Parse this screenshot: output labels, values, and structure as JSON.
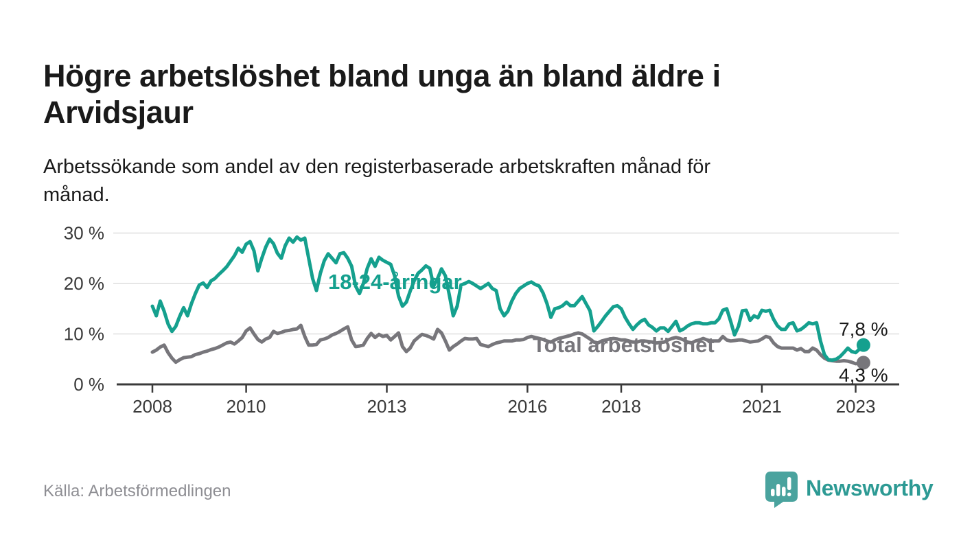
{
  "header": {
    "title": "Högre arbetslöshet bland unga än bland äldre i\nArvidsjaur",
    "subtitle": "Arbetssökande som andel av den registerbaserade arbetskraften månad för\nmånad."
  },
  "chart_data": {
    "type": "line",
    "unit": "percent of registered labour force",
    "frequency": "monthly",
    "start": "2008-01",
    "end": "2023-03",
    "ylim": [
      0,
      30
    ],
    "grid": "horizontal",
    "legend_position": "inline-labels",
    "y_ticks": [
      {
        "value": 0,
        "label": "0 %"
      },
      {
        "value": 10,
        "label": "10 %"
      },
      {
        "value": 20,
        "label": "20 %"
      },
      {
        "value": 30,
        "label": "30 %"
      }
    ],
    "x_ticks": [
      {
        "year": 2008,
        "label": "2008"
      },
      {
        "year": 2010,
        "label": "2010"
      },
      {
        "year": 2013,
        "label": "2013"
      },
      {
        "year": 2016,
        "label": "2016"
      },
      {
        "year": 2018,
        "label": "2018"
      },
      {
        "year": 2021,
        "label": "2021"
      },
      {
        "year": 2023,
        "label": "2023"
      }
    ],
    "series": [
      {
        "id": "total",
        "label": "Total arbetslöshet",
        "color": "#77767b",
        "end_value_label": "4,3 %",
        "end_value": 4.3,
        "values": [
          6.4,
          6.8,
          7.4,
          7.8,
          6.3,
          5.2,
          4.4,
          4.9,
          5.3,
          5.4,
          5.5,
          5.9,
          6.1,
          6.4,
          6.6,
          6.9,
          7.1,
          7.4,
          7.8,
          8.2,
          8.4,
          8.0,
          8.6,
          9.3,
          10.6,
          11.2,
          10.0,
          8.9,
          8.4,
          9.0,
          9.3,
          10.5,
          10.1,
          10.3,
          10.6,
          10.7,
          10.9,
          11.0,
          11.7,
          9.5,
          7.8,
          7.8,
          7.9,
          8.8,
          9.0,
          9.3,
          9.8,
          10.1,
          10.5,
          11.0,
          11.4,
          8.8,
          7.5,
          7.6,
          7.8,
          9.1,
          10.1,
          9.3,
          9.9,
          9.5,
          9.7,
          8.8,
          9.5,
          10.2,
          7.5,
          6.5,
          7.2,
          8.6,
          9.3,
          9.9,
          9.7,
          9.4,
          9.0,
          10.9,
          10.2,
          8.6,
          6.8,
          7.5,
          8.0,
          8.6,
          9.1,
          9.0,
          9.0,
          9.1,
          7.9,
          7.7,
          7.5,
          7.9,
          8.2,
          8.4,
          8.6,
          8.6,
          8.6,
          8.8,
          8.8,
          8.9,
          9.3,
          9.5,
          9.3,
          9.1,
          8.9,
          8.6,
          8.4,
          8.8,
          9.1,
          9.3,
          9.5,
          9.7,
          10.0,
          10.2,
          10.0,
          9.5,
          9.0,
          8.4,
          8.2,
          8.6,
          8.8,
          9.0,
          9.1,
          9.0,
          8.8,
          8.8,
          8.6,
          8.4,
          8.4,
          8.6,
          8.6,
          8.5,
          8.4,
          8.2,
          8.3,
          8.4,
          8.8,
          9.1,
          9.3,
          9.1,
          8.8,
          8.4,
          8.2,
          8.6,
          8.8,
          9.1,
          8.8,
          8.6,
          8.6,
          8.6,
          9.5,
          8.8,
          8.6,
          8.7,
          8.8,
          8.8,
          8.6,
          8.4,
          8.5,
          8.6,
          9.0,
          9.5,
          9.3,
          8.2,
          7.5,
          7.2,
          7.2,
          7.2,
          7.2,
          6.8,
          7.1,
          6.5,
          6.5,
          7.2,
          6.8,
          5.9,
          5.2,
          4.8,
          4.7,
          4.6,
          4.6,
          4.7,
          4.6,
          4.4,
          4.1,
          4.2,
          4.3
        ]
      },
      {
        "id": "youth",
        "label": "18-24-åringar",
        "color": "#15a08e",
        "end_value_label": "7,8 %",
        "end_value": 7.8,
        "values": [
          15.5,
          13.6,
          16.5,
          14.5,
          12.0,
          10.5,
          11.5,
          13.5,
          15.2,
          13.6,
          16.0,
          18.0,
          19.7,
          20.1,
          19.2,
          20.5,
          21.0,
          21.8,
          22.5,
          23.3,
          24.4,
          25.5,
          27.0,
          26.2,
          27.8,
          28.3,
          26.5,
          22.5,
          25.0,
          27.2,
          28.8,
          27.9,
          26.0,
          25.0,
          27.5,
          29.0,
          28.2,
          29.2,
          28.6,
          29.0,
          25.0,
          21.0,
          18.6,
          22.0,
          24.5,
          25.9,
          25.0,
          24.1,
          25.9,
          26.1,
          25.0,
          23.4,
          19.5,
          18.0,
          20.0,
          23.0,
          24.9,
          23.4,
          25.2,
          24.6,
          24.2,
          23.8,
          21.5,
          17.5,
          15.5,
          16.3,
          18.5,
          20.5,
          22.0,
          22.7,
          23.5,
          23.0,
          19.5,
          21.0,
          22.9,
          21.5,
          17.7,
          13.6,
          15.5,
          19.7,
          20.0,
          20.4,
          20.0,
          19.5,
          19.0,
          19.5,
          20.0,
          19.0,
          18.6,
          15.0,
          13.6,
          14.5,
          16.5,
          18.0,
          19.0,
          19.5,
          20.0,
          20.3,
          19.8,
          19.5,
          18.1,
          16.0,
          13.3,
          15.0,
          15.2,
          15.6,
          16.3,
          15.6,
          15.6,
          16.5,
          17.4,
          16.0,
          14.6,
          10.6,
          11.5,
          12.5,
          13.6,
          14.5,
          15.4,
          15.6,
          15.0,
          13.3,
          12.0,
          10.9,
          11.8,
          12.5,
          12.9,
          11.8,
          11.3,
          10.6,
          11.2,
          11.2,
          10.5,
          11.5,
          12.5,
          10.6,
          11.0,
          11.6,
          12.0,
          12.2,
          12.2,
          12.0,
          12.0,
          12.2,
          12.2,
          13.0,
          14.7,
          15.0,
          12.5,
          9.8,
          11.5,
          14.6,
          14.7,
          12.7,
          13.6,
          13.2,
          14.7,
          14.5,
          14.7,
          12.9,
          11.6,
          10.9,
          10.9,
          12.0,
          12.2,
          10.6,
          10.9,
          11.5,
          12.2,
          12.0,
          12.2,
          8.6,
          5.9,
          4.9,
          4.8,
          5.0,
          5.5,
          6.3,
          7.2,
          6.5,
          6.3,
          7.0,
          7.8
        ]
      }
    ]
  },
  "footer": {
    "source": "Källa: Arbetsförmedlingen",
    "logo": {
      "text": "Newsworthy",
      "icon": "bar-chart-speech-bubble-icon",
      "icon_color": "#4aa39e",
      "text_color": "#2d9a94"
    }
  },
  "colors": {
    "background": "#ffffff",
    "title_text": "#1a1a1a",
    "axis_text": "#3a3a3a",
    "grid_line": "#e0e0e0",
    "axis_line": "#3a3a3a",
    "source_text": "#8e8e93",
    "value_label_text": "#1a1a1a"
  }
}
